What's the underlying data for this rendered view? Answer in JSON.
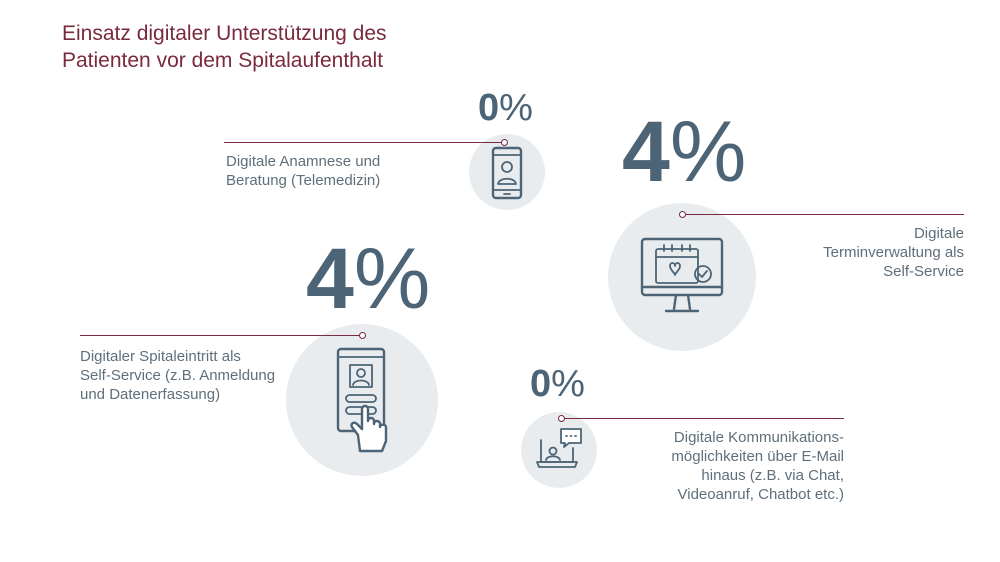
{
  "chart_data": {
    "type": "other",
    "title_lines": [
      "Einsatz digitaler Unterstützung des",
      "Patienten vor dem Spitalaufenthalt"
    ],
    "items": [
      {
        "value": 0,
        "number": "0",
        "unit": "%",
        "label_lines": [
          "Digitale Anamnese und",
          "Beratung (Telemedizin)"
        ],
        "icon": "smartphone-video-icon"
      },
      {
        "value": 4,
        "number": "4",
        "unit": "%",
        "label_lines": [
          "Digitale",
          "Terminverwaltung als",
          "Self-Service"
        ],
        "icon": "monitor-calendar-icon"
      },
      {
        "value": 4,
        "number": "4",
        "unit": "%",
        "label_lines": [
          "Digitaler Spitaleintritt als",
          "Self-Service (z.B. Anmeldung",
          "und Datenerfassung)"
        ],
        "icon": "tablet-touch-icon"
      },
      {
        "value": 0,
        "number": "0",
        "unit": "%",
        "label_lines": [
          "Digitale Kommunikations-",
          "möglichkeiten über E-Mail",
          "hinaus (z.B. via Chat,",
          "Videoanruf, Chatbot etc.)"
        ],
        "icon": "laptop-chat-icon"
      }
    ]
  },
  "colors": {
    "title": "#7a2a3e",
    "value": "#4c6475",
    "label": "#5f6f7b",
    "circle": "#e9ecef",
    "connector": "#7a2a3e"
  }
}
